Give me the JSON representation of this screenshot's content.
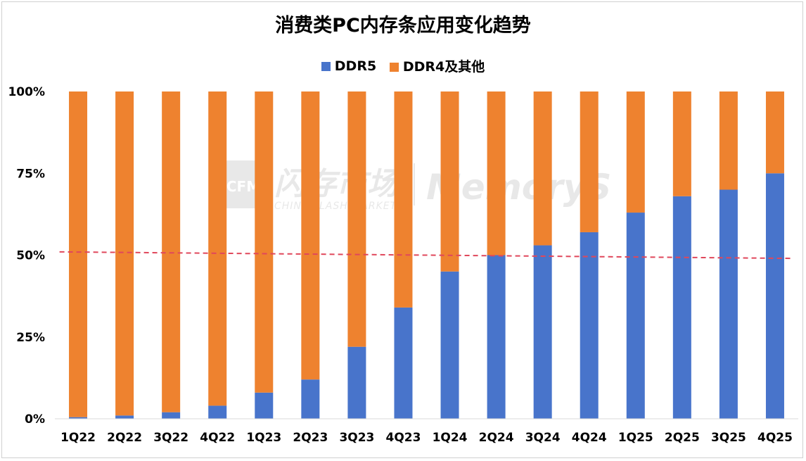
{
  "chart_data": {
    "type": "bar",
    "stacked": true,
    "title": "消费类PC内存条应用变化趋势",
    "categories": [
      "1Q22",
      "2Q22",
      "3Q22",
      "4Q22",
      "1Q23",
      "2Q23",
      "3Q23",
      "4Q23",
      "1Q24",
      "2Q24",
      "3Q24",
      "4Q24",
      "1Q25",
      "2Q25",
      "3Q25",
      "4Q25"
    ],
    "series": [
      {
        "name": "DDR5",
        "color": "#4874CB",
        "values": [
          0.5,
          1,
          2,
          4,
          8,
          12,
          22,
          34,
          45,
          50,
          53,
          57,
          63,
          68,
          70,
          75
        ]
      },
      {
        "name": "DDR4及其他",
        "color": "#EE822F",
        "values": [
          99.5,
          99,
          98,
          96,
          92,
          88,
          78,
          66,
          55,
          50,
          47,
          43,
          37,
          32,
          30,
          25
        ]
      }
    ],
    "yticks": [
      "0%",
      "25%",
      "50%",
      "75%",
      "100%"
    ],
    "ylim": [
      0,
      100
    ],
    "legend_position": "top",
    "grid": false,
    "trendline": {
      "style": "dashed",
      "color": "#E0475B",
      "start_value": 51,
      "end_value": 49
    },
    "watermark": {
      "logo": "CFM",
      "text_cn": "闪存市场",
      "text_en": "CHINA FLASH MARKET",
      "brand": "MemoryS"
    }
  }
}
